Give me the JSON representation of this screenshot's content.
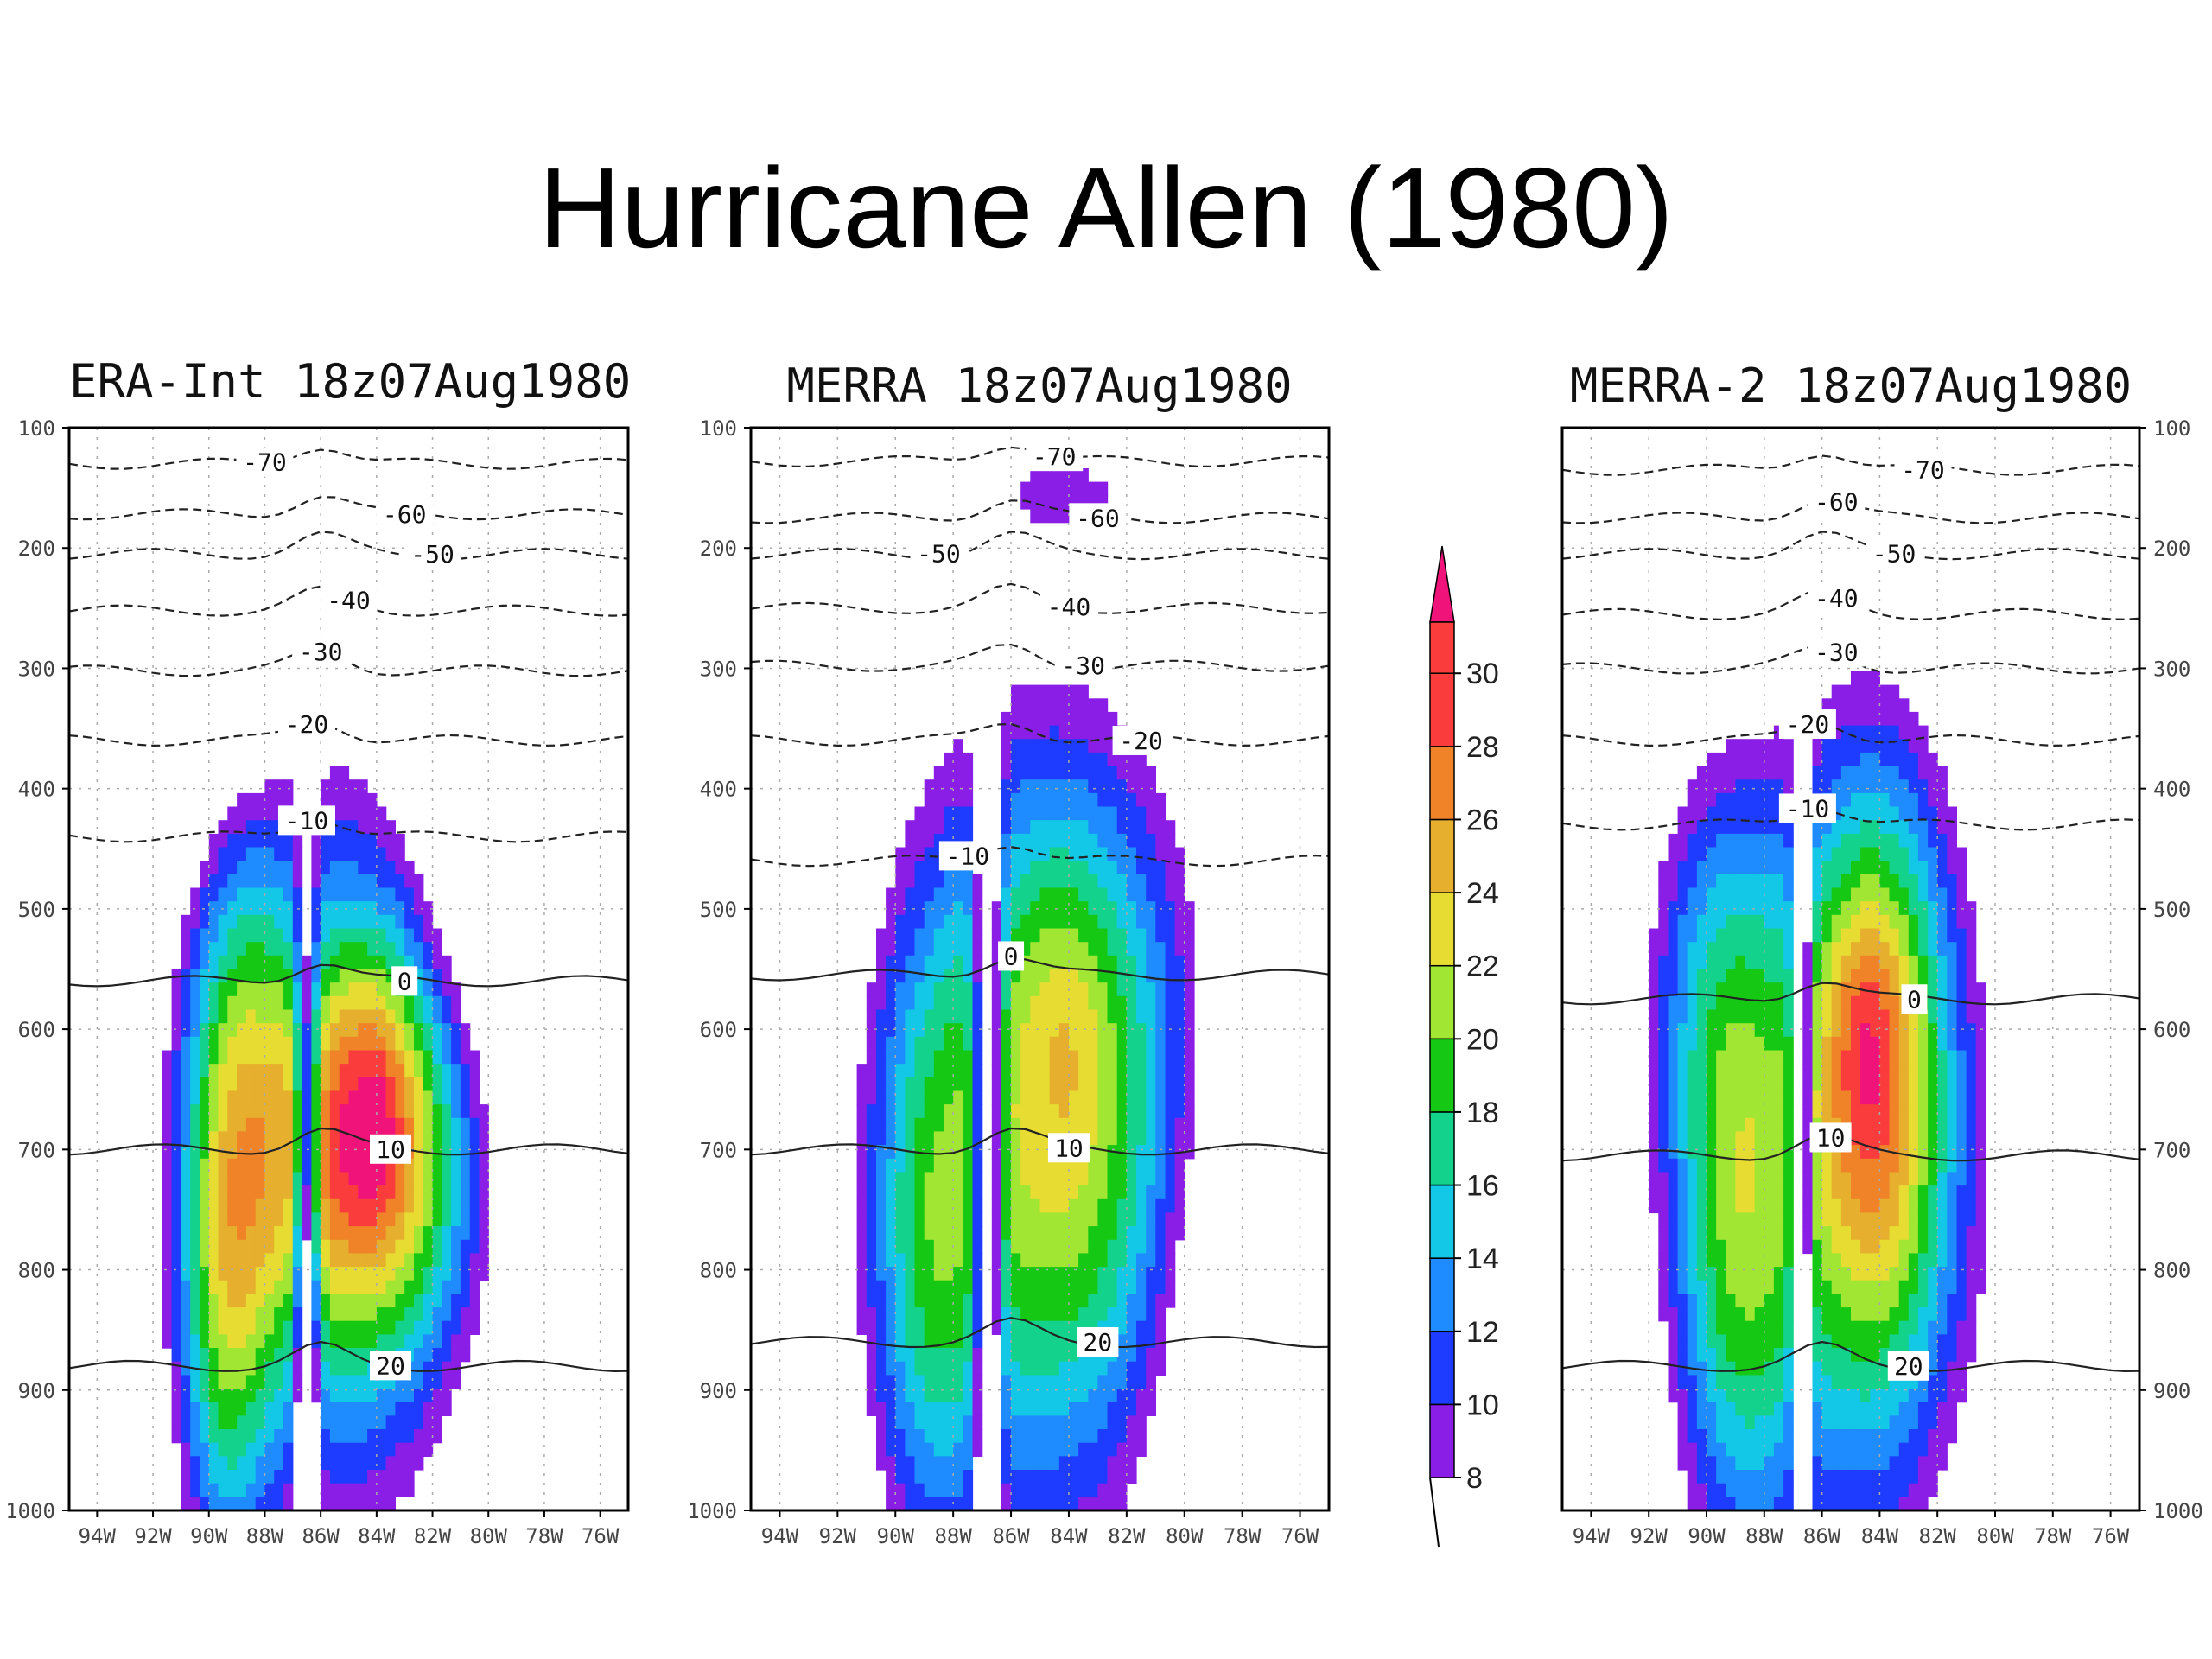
{
  "slide": {
    "title": "Hurricane Allen (1980)"
  },
  "chart_data": {
    "type": "heatmap",
    "x_tick_labels": [
      "94W",
      "92W",
      "90W",
      "88W",
      "86W",
      "84W",
      "82W",
      "80W",
      "78W",
      "76W"
    ],
    "x_tick_values": [
      94,
      92,
      90,
      88,
      86,
      84,
      82,
      80,
      78,
      76
    ],
    "y_tick_labels": [
      "100",
      "200",
      "300",
      "400",
      "500",
      "600",
      "700",
      "800",
      "900",
      "1000"
    ],
    "y_tick_values": [
      100,
      200,
      300,
      400,
      500,
      600,
      700,
      800,
      900,
      1000
    ],
    "xlim": [
      95,
      75
    ],
    "ylim": [
      100,
      1000
    ],
    "colorbar": {
      "labels": [
        "8",
        "10",
        "12",
        "14",
        "16",
        "18",
        "20",
        "22",
        "24",
        "26",
        "28",
        "30"
      ],
      "levels": [
        8,
        10,
        12,
        14,
        16,
        18,
        20,
        22,
        24,
        26,
        28,
        30
      ],
      "colors": [
        "#8a1ee6",
        "#1e3cff",
        "#1e8cff",
        "#13c8e6",
        "#13d28c",
        "#14c814",
        "#a0e632",
        "#e6dc32",
        "#e6af2d",
        "#f08228",
        "#fa3c3c",
        "#f0147a"
      ]
    },
    "panels": [
      {
        "title": "ERA-Int 18z07Aug1980",
        "peak": [
          84,
          650,
          30
        ],
        "blobs": [
          [
            84,
            700,
            4.2,
            170,
            16
          ],
          [
            89.5,
            850,
            1.7,
            230,
            10
          ],
          [
            89,
            600,
            2.0,
            280,
            7
          ],
          [
            90,
            300,
            3,
            160,
            -6
          ],
          [
            88,
            135,
            4,
            60,
            6
          ],
          [
            86.5,
            750,
            0.4,
            300,
            -16
          ],
          [
            80,
            550,
            3,
            300,
            -6
          ]
        ],
        "contours": [
          {
            "label": "-70",
            "y": 130,
            "lx": 88,
            "dashed": true
          },
          {
            "label": "-60",
            "y": 172,
            "lx": 83,
            "dashed": true
          },
          {
            "label": "-50",
            "y": 205,
            "lx": 82,
            "dashed": true
          },
          {
            "label": "-40",
            "y": 252,
            "lx": 85,
            "dashed": true
          },
          {
            "label": "-30",
            "y": 302,
            "lx": 86,
            "dashed": true
          },
          {
            "label": "-20",
            "y": 360,
            "lx": 86.5,
            "dashed": true
          },
          {
            "label": "-10",
            "y": 440,
            "lx": 86.5,
            "dashed": true
          },
          {
            "label": "0",
            "y": 560,
            "lx": 83,
            "dashed": false
          },
          {
            "label": "10",
            "y": 700,
            "lx": 83.5,
            "dashed": false
          },
          {
            "label": "20",
            "y": 880,
            "lx": 83.5,
            "dashed": false
          }
        ]
      },
      {
        "title": "MERRA 18z07Aug1980",
        "peak": [
          84,
          580,
          26
        ],
        "blobs": [
          [
            83.5,
            650,
            4.5,
            280,
            10
          ],
          [
            89,
            800,
            2.0,
            260,
            8
          ],
          [
            84,
            150,
            4,
            60,
            6
          ],
          [
            92,
            150,
            3,
            50,
            4
          ],
          [
            86.8,
            700,
            0.45,
            330,
            -18
          ],
          [
            79,
            800,
            2.5,
            220,
            -4
          ]
        ],
        "contours": [
          {
            "label": "-70",
            "y": 128,
            "lx": 84.5,
            "dashed": true
          },
          {
            "label": "-60",
            "y": 175,
            "lx": 83,
            "dashed": true
          },
          {
            "label": "-50",
            "y": 205,
            "lx": 88.5,
            "dashed": true
          },
          {
            "label": "-40",
            "y": 250,
            "lx": 84,
            "dashed": true
          },
          {
            "label": "-30",
            "y": 298,
            "lx": 83.5,
            "dashed": true
          },
          {
            "label": "-20",
            "y": 360,
            "lx": 81.5,
            "dashed": true
          },
          {
            "label": "-10",
            "y": 460,
            "lx": 87.5,
            "dashed": true
          },
          {
            "label": "0",
            "y": 555,
            "lx": 86,
            "dashed": false
          },
          {
            "label": "10",
            "y": 700,
            "lx": 84,
            "dashed": false
          },
          {
            "label": "20",
            "y": 860,
            "lx": 83,
            "dashed": false
          }
        ]
      },
      {
        "title": "MERRA-2 18z07Aug1980",
        "peak": [
          84.5,
          600,
          30
        ],
        "blobs": [
          [
            84,
            650,
            2.5,
            260,
            14
          ],
          [
            89,
            800,
            2.2,
            260,
            10
          ],
          [
            90,
            550,
            2.5,
            200,
            6
          ],
          [
            90,
            140,
            4,
            50,
            6
          ],
          [
            86.7,
            700,
            0.3,
            330,
            -20
          ],
          [
            77,
            550,
            2,
            200,
            -6
          ]
        ],
        "contours": [
          {
            "label": "-70",
            "y": 135,
            "lx": 82.5,
            "dashed": true
          },
          {
            "label": "-60",
            "y": 175,
            "lx": 85.5,
            "dashed": true
          },
          {
            "label": "-50",
            "y": 205,
            "lx": 83.5,
            "dashed": true
          },
          {
            "label": "-40",
            "y": 255,
            "lx": 85.5,
            "dashed": true
          },
          {
            "label": "-30",
            "y": 300,
            "lx": 85.5,
            "dashed": true
          },
          {
            "label": "-20",
            "y": 360,
            "lx": 86.5,
            "dashed": true
          },
          {
            "label": "-10",
            "y": 430,
            "lx": 86.5,
            "dashed": true
          },
          {
            "label": "0",
            "y": 575,
            "lx": 82.8,
            "dashed": false
          },
          {
            "label": "10",
            "y": 705,
            "lx": 85.7,
            "dashed": false
          },
          {
            "label": "20",
            "y": 880,
            "lx": 83,
            "dashed": false
          }
        ]
      }
    ]
  }
}
